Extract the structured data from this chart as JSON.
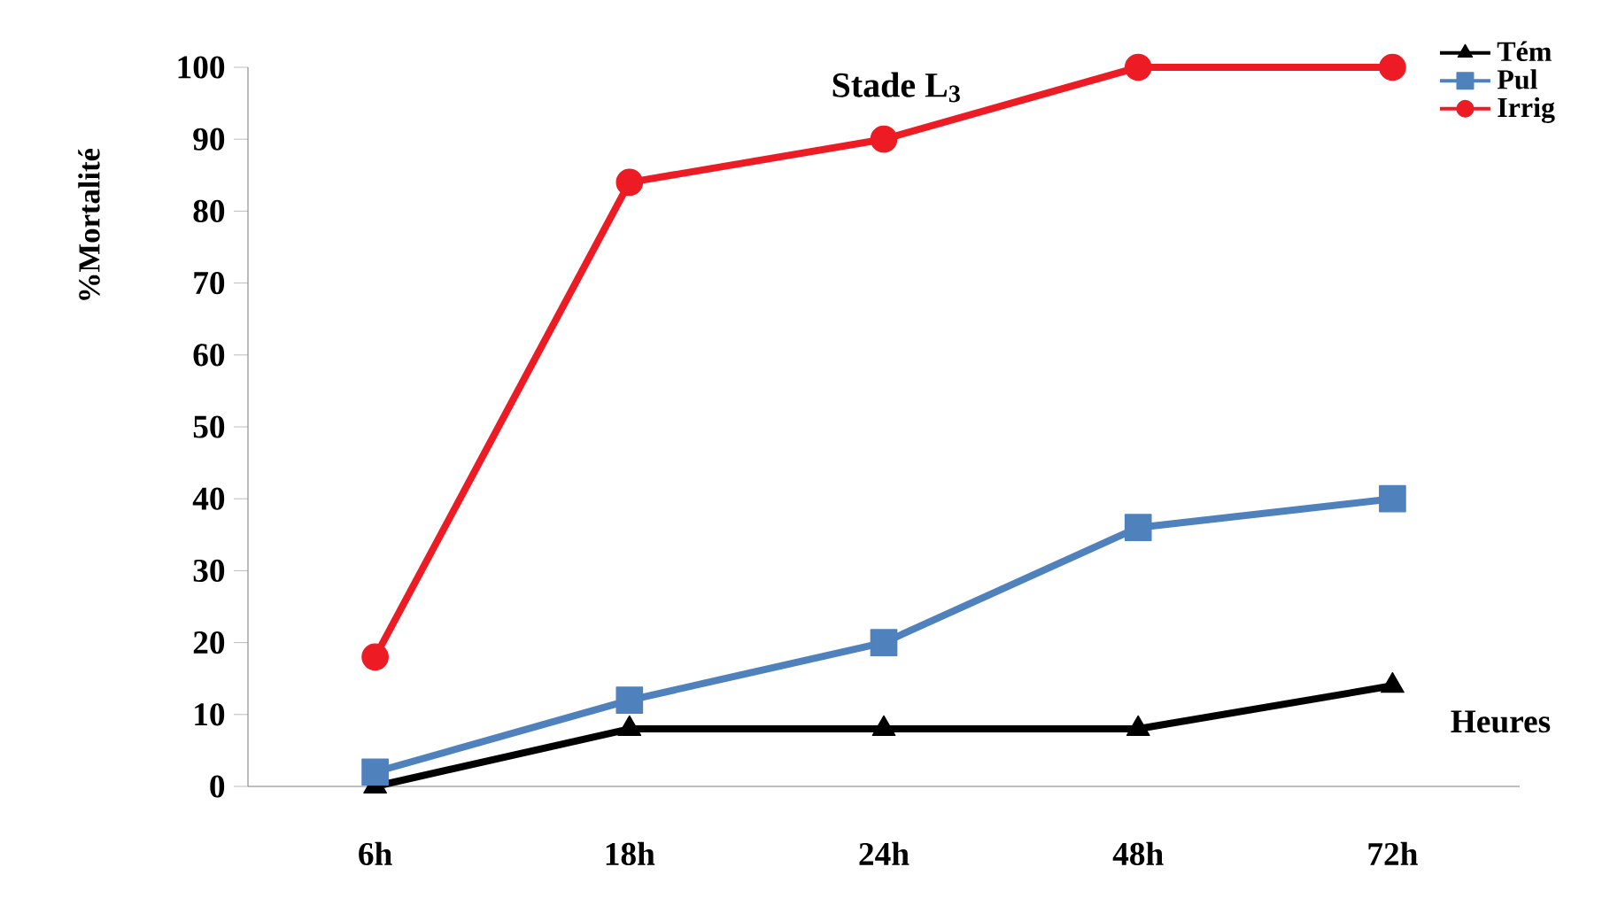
{
  "chart_data": {
    "type": "line",
    "title": "Stade L$_{3}$",
    "xlabel": "Heures",
    "ylabel": "%Mortalité",
    "categories": [
      "6h",
      "18h",
      "24h",
      "48h",
      "72h"
    ],
    "series": [
      {
        "name": "Tém",
        "color": "#000000",
        "marker": "triangle",
        "values": [
          0,
          8,
          8,
          8,
          14
        ]
      },
      {
        "name": "Pul",
        "color": "#4f81bd",
        "marker": "square",
        "values": [
          2,
          12,
          20,
          36,
          40
        ]
      },
      {
        "name": "Irrig",
        "color": "#ed1c24",
        "marker": "circle",
        "values": [
          18,
          84,
          90,
          100,
          100
        ]
      }
    ],
    "ylim": [
      0,
      100
    ],
    "yticks": [
      0,
      10,
      20,
      30,
      40,
      50,
      60,
      70,
      80,
      90,
      100
    ],
    "grid": false,
    "legend": "top right",
    "line_style": "solid"
  }
}
